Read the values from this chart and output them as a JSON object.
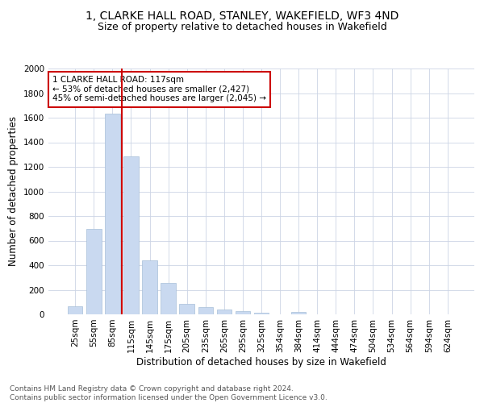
{
  "title": "1, CLARKE HALL ROAD, STANLEY, WAKEFIELD, WF3 4ND",
  "subtitle": "Size of property relative to detached houses in Wakefield",
  "xlabel": "Distribution of detached houses by size in Wakefield",
  "ylabel": "Number of detached properties",
  "categories": [
    "25sqm",
    "55sqm",
    "85sqm",
    "115sqm",
    "145sqm",
    "175sqm",
    "205sqm",
    "235sqm",
    "265sqm",
    "295sqm",
    "325sqm",
    "354sqm",
    "384sqm",
    "414sqm",
    "444sqm",
    "474sqm",
    "504sqm",
    "534sqm",
    "564sqm",
    "594sqm",
    "624sqm"
  ],
  "values": [
    65,
    695,
    1635,
    1285,
    440,
    255,
    88,
    58,
    42,
    27,
    15,
    0,
    18,
    0,
    0,
    0,
    0,
    0,
    0,
    0,
    0
  ],
  "bar_color": "#c9d9f0",
  "bar_edge_color": "#a8bfd8",
  "vline_color": "#cc0000",
  "vline_x_index": 2,
  "annotation_text": "1 CLARKE HALL ROAD: 117sqm\n← 53% of detached houses are smaller (2,427)\n45% of semi-detached houses are larger (2,045) →",
  "annotation_box_color": "#ffffff",
  "annotation_box_edge_color": "#cc0000",
  "ylim": [
    0,
    2000
  ],
  "yticks": [
    0,
    200,
    400,
    600,
    800,
    1000,
    1200,
    1400,
    1600,
    1800,
    2000
  ],
  "footer_line1": "Contains HM Land Registry data © Crown copyright and database right 2024.",
  "footer_line2": "Contains public sector information licensed under the Open Government Licence v3.0.",
  "title_fontsize": 10,
  "subtitle_fontsize": 9,
  "axis_label_fontsize": 8.5,
  "tick_fontsize": 7.5,
  "annotation_fontsize": 7.5,
  "footer_fontsize": 6.5,
  "background_color": "#ffffff",
  "grid_color": "#ccd5e5"
}
